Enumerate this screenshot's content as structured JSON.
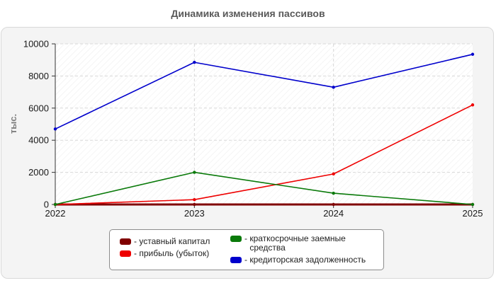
{
  "chart_data": {
    "type": "line",
    "title": "Динамика изменения пассивов",
    "ylabel": "тыс.",
    "xlabel": "",
    "x": [
      "2022",
      "2023",
      "2024",
      "2025"
    ],
    "ylim": [
      0,
      10000
    ],
    "yticks": [
      "0",
      "2000",
      "4000",
      "6000",
      "8000",
      "10000"
    ],
    "grid": true,
    "legend_position": "bottom",
    "series": [
      {
        "name": "уставный капитал",
        "color": "#800000",
        "values": [
          0,
          0,
          0,
          0
        ]
      },
      {
        "name": "прибыль (убыток)",
        "color": "#ee0000",
        "values": [
          0,
          300,
          1900,
          6200
        ]
      },
      {
        "name": "краткосрочные заемные средства",
        "color": "#0a7a0a",
        "values": [
          0,
          2000,
          700,
          0
        ]
      },
      {
        "name": "кредиторская задолженность",
        "color": "#0000cc",
        "values": [
          4700,
          8850,
          7300,
          9350
        ]
      }
    ],
    "legend": {
      "prefix": "- ",
      "item1": "уставный капитал",
      "item2": "прибыль (убыток)",
      "item3_line1": "краткосрочные заемные",
      "item3_line2": "средства",
      "item4": "кредиторская задолженность"
    }
  }
}
